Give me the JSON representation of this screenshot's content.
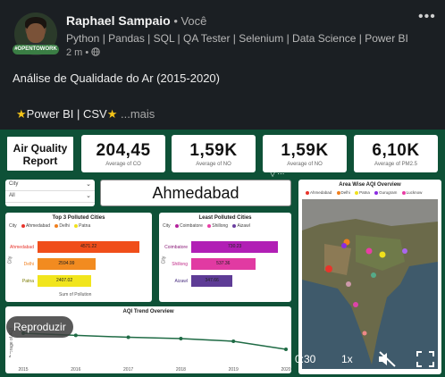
{
  "post": {
    "author_name": "Raphael Sampaio",
    "author_suffix": " • Você",
    "badge": "#OPENTOWORK",
    "headline": "Python | Pandas | SQL | QA Tester | Selenium | Data Science | Power BI",
    "meta": "2 m • ",
    "globe_icon": "globe-icon",
    "more_icon": "•••",
    "title": "Análise de Qualidade do Ar (2015-2020)",
    "tags_text": "Power BI | CSV",
    "see_more": "...mais"
  },
  "dashboard": {
    "report_title_line1": "Air Quality",
    "report_title_line2": "Report",
    "kpis": [
      {
        "value": "204,45",
        "label": "Average of CO"
      },
      {
        "value": "1,59K",
        "label": "Average of NO"
      },
      {
        "value": "1,59K",
        "label": "Average of NO"
      },
      {
        "value": "6,10K",
        "label": "Average of PM2.5"
      }
    ],
    "filter_city_label": "City",
    "filter_all_label": "All",
    "selected_city": "Ahmedabad",
    "top_polluted": {
      "title": "Top 3 Polluted Cities",
      "legend_label": "City",
      "legend": [
        {
          "name": "Ahmedabad",
          "color": "#e8342b"
        },
        {
          "name": "Delhi",
          "color": "#f07f1d"
        },
        {
          "name": "Patna",
          "color": "#f0e11c"
        }
      ],
      "axis_y": "City",
      "axis_x": "Sum of Pollution",
      "bars": [
        {
          "city": "Ahmedabad",
          "value": "4571.22",
          "num": 4571.22,
          "color": "#f04e1a"
        },
        {
          "city": "Delhi",
          "value": "2594.99",
          "num": 2594.99,
          "color": "#f28b20"
        },
        {
          "city": "Patna",
          "value": "2407.02",
          "num": 2407.02,
          "color": "#f1e51d"
        }
      ],
      "max": 4800
    },
    "least_polluted": {
      "title": "Least Polluted Cities",
      "legend_label": "City",
      "legend": [
        {
          "name": "Coimbatore",
          "color": "#b4229c"
        },
        {
          "name": "Shillong",
          "color": "#e83ea5"
        },
        {
          "name": "Aizawl",
          "color": "#6b3fa0"
        }
      ],
      "axis_y": "City",
      "bars": [
        {
          "city": "Coimbatore",
          "value": "730.23",
          "num": 730.23,
          "color": "#b11fb5"
        },
        {
          "city": "Shillong",
          "value": "537.36",
          "num": 537.36,
          "color": "#e13aa2"
        },
        {
          "city": "Aizawl",
          "value": "347.66",
          "num": 347.66,
          "color": "#5e3c96"
        }
      ],
      "max": 780
    },
    "map": {
      "title": "Area Wise AQI Overview",
      "legend": [
        {
          "name": "Ahmedabad",
          "color": "#e8342b"
        },
        {
          "name": "Delhi",
          "color": "#f07f1d"
        },
        {
          "name": "Patna",
          "color": "#f0e11c"
        },
        {
          "name": "Gurugram",
          "color": "#8a2be2"
        },
        {
          "name": "Lucknow",
          "color": "#e83ea5"
        }
      ]
    },
    "trend": {
      "title": "AQI Trend Overview",
      "axis_y": "Average of AQI",
      "axis_x": "Year",
      "x_labels": [
        "2015",
        "2016",
        "2017",
        "2018",
        "2019",
        "2020"
      ]
    }
  },
  "chart_data": {
    "type": "line",
    "title": "AQI Trend Overview",
    "xlabel": "Year",
    "ylabel": "Average of AQI",
    "x": [
      2015,
      2016,
      2017,
      2018,
      2019,
      2020
    ],
    "values": [
      220,
      212,
      205,
      200,
      190,
      160
    ]
  },
  "player": {
    "play_label": "Reproduzir",
    "time": "0:30",
    "speed": "1x",
    "progress": 0.06
  }
}
